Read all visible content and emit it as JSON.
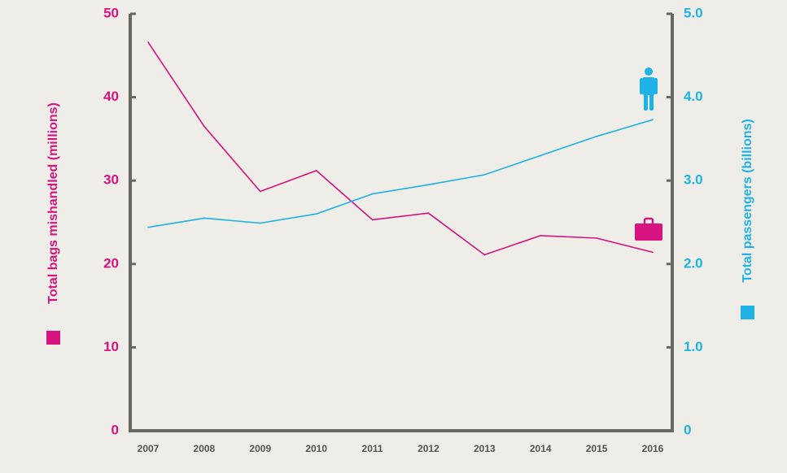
{
  "colors": {
    "bags": "#d6137f",
    "passengers": "#1fb2e6",
    "axis": "#67675f",
    "x_ticks": "#555550",
    "background": "#eeede7"
  },
  "icons": {
    "bags": "suitcase-icon",
    "passengers": "person-icon"
  },
  "chart_data": {
    "type": "line",
    "x": [
      "2007",
      "2008",
      "2009",
      "2010",
      "2011",
      "2012",
      "2013",
      "2014",
      "2015",
      "2016"
    ],
    "series": [
      {
        "key": "bags",
        "axis": "left",
        "values": [
          46.6,
          36.5,
          28.7,
          31.2,
          25.3,
          26.1,
          21.1,
          23.4,
          23.1,
          21.4
        ]
      },
      {
        "key": "passengers",
        "axis": "right",
        "values": [
          2.44,
          2.55,
          2.49,
          2.6,
          2.84,
          2.95,
          3.07,
          3.3,
          3.53,
          3.73
        ]
      }
    ],
    "left_axis": {
      "label": "Total bags mishandled (millions)",
      "ylim": [
        0,
        50
      ],
      "ticks": [
        "0",
        "10",
        "20",
        "30",
        "40",
        "50"
      ]
    },
    "right_axis": {
      "label": "Total passengers (billions)",
      "ylim": [
        0,
        5
      ],
      "ticks": [
        "0",
        "1.0",
        "2.0",
        "3.0",
        "4.0",
        "5.0"
      ]
    },
    "grid": false,
    "legend": "axis-side color squares"
  }
}
